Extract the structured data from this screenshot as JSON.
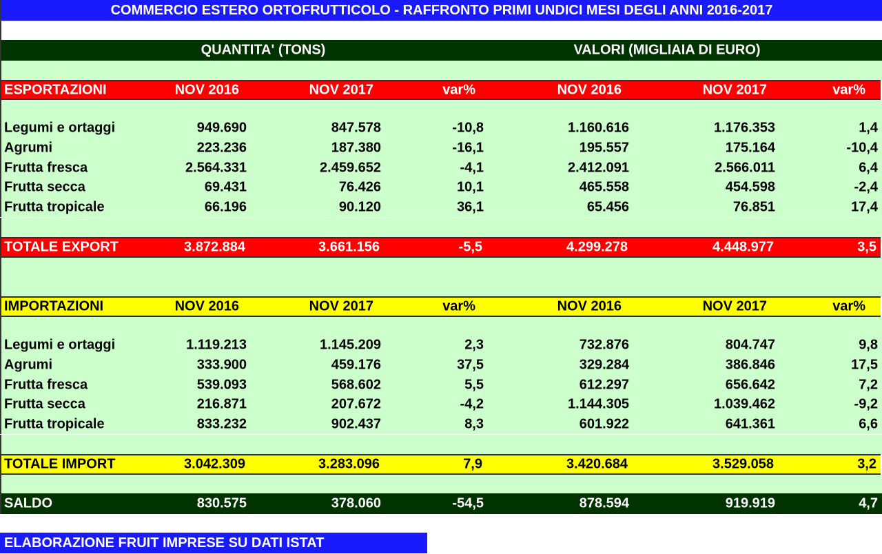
{
  "title": "COMMERCIO ESTERO ORTOFRUTTICOLO - RAFFRONTO PRIMI UNDICI MESI DEGLI ANNI 2016-2017",
  "group_headers": {
    "quantity": "QUANTITA' (TONS)",
    "value": "VALORI (MIGLIAIA DI EURO)"
  },
  "export": {
    "header": [
      "ESPORTAZIONI",
      "NOV 2016",
      "NOV 2017",
      "var%",
      "NOV 2016",
      "NOV 2017",
      "var%"
    ],
    "rows": [
      [
        "Legumi e ortaggi",
        "949.690",
        "847.578",
        "-10,8",
        "1.160.616",
        "1.176.353",
        "1,4"
      ],
      [
        "Agrumi",
        "223.236",
        "187.380",
        "-16,1",
        "195.557",
        "175.164",
        "-10,4"
      ],
      [
        "Frutta fresca",
        "2.564.331",
        "2.459.652",
        "-4,1",
        "2.412.091",
        "2.566.011",
        "6,4"
      ],
      [
        "Frutta secca",
        "69.431",
        "76.426",
        "10,1",
        "465.558",
        "454.598",
        "-2,4"
      ],
      [
        "Frutta tropicale",
        "66.196",
        "90.120",
        "36,1",
        "65.456",
        "76.851",
        "17,4"
      ]
    ],
    "total": [
      "TOTALE EXPORT",
      "3.872.884",
      "3.661.156",
      "-5,5",
      "4.299.278",
      "4.448.977",
      "3,5"
    ]
  },
  "import": {
    "header": [
      "IMPORTAZIONI",
      "NOV 2016",
      "NOV 2017",
      "var%",
      "NOV 2016",
      "NOV 2017",
      "var%"
    ],
    "rows": [
      [
        "Legumi e ortaggi",
        "1.119.213",
        "1.145.209",
        "2,3",
        "732.876",
        "804.747",
        "9,8"
      ],
      [
        "Agrumi",
        "333.900",
        "459.176",
        "37,5",
        "329.284",
        "386.846",
        "17,5"
      ],
      [
        "Frutta fresca",
        "539.093",
        "568.602",
        "5,5",
        "612.297",
        "656.642",
        "7,2"
      ],
      [
        "Frutta secca",
        "216.871",
        "207.672",
        "-4,2",
        "1.144.305",
        "1.039.462",
        "-9,2"
      ],
      [
        "Frutta tropicale",
        "833.232",
        "902.437",
        "8,3",
        "601.922",
        "641.361",
        "6,6"
      ]
    ],
    "total": [
      "TOTALE IMPORT",
      "3.042.309",
      "3.283.096",
      "7,9",
      "3.420.684",
      "3.529.058",
      "3,2"
    ]
  },
  "saldo": [
    "SALDO",
    "830.575",
    "378.060",
    "-54,5",
    "878.594",
    "919.919",
    "4,7"
  ],
  "footer": "ELABORAZIONE FRUIT IMPRESE SU DATI ISTAT",
  "colors": {
    "title": "#1a1aff",
    "dark_green": "#003300",
    "light_green": "#ccffcc",
    "export": "#ff0000",
    "import": "#ffff00"
  }
}
